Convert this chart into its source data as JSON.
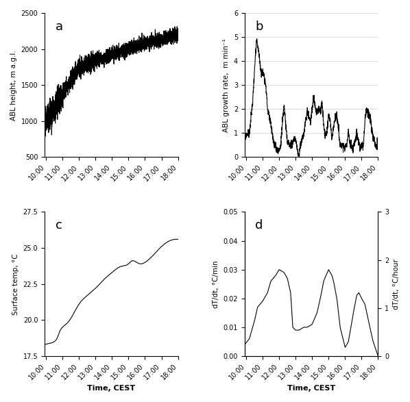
{
  "time_start": 9.917,
  "time_end": 18.0,
  "panel_labels": [
    "a",
    "b",
    "c",
    "d"
  ],
  "panel_a": {
    "ylabel": "ABL height, m a.g.l.",
    "ylim": [
      500,
      2500
    ],
    "yticks": [
      500,
      1000,
      1500,
      2000,
      2500
    ],
    "grid": false
  },
  "panel_b": {
    "ylabel": "ABL growth rate,  m min⁻¹",
    "ylim": [
      0,
      6
    ],
    "yticks": [
      0,
      1,
      2,
      3,
      4,
      5,
      6
    ],
    "grid": true
  },
  "panel_c": {
    "ylabel": "Surface temp, °C",
    "ylim": [
      17.5,
      27.5
    ],
    "yticks": [
      17.5,
      20.0,
      22.5,
      25.0,
      27.5
    ],
    "grid": false,
    "xlabel": "Time, CEST"
  },
  "panel_d": {
    "ylabel": "dT/dt, °C/min",
    "ylabel_right": "dT/dt, °C/hour",
    "ylim": [
      0,
      0.05
    ],
    "yticks": [
      0.0,
      0.01,
      0.02,
      0.03,
      0.04,
      0.05
    ],
    "ylim_right": [
      0,
      3
    ],
    "yticks_right": [
      0,
      1,
      2,
      3
    ],
    "grid": false,
    "xlabel": "Time, CEST"
  },
  "xticks": [
    10,
    11,
    12,
    13,
    14,
    15,
    16,
    17,
    18
  ],
  "xticklabels": [
    "10:00",
    "11:00",
    "12:00",
    "13:00",
    "14:00",
    "15:00",
    "16:00",
    "17:00",
    "18:00"
  ],
  "line_color": "black",
  "line_width": 0.8,
  "panel_d_t": [
    9.917,
    10.2,
    10.5,
    10.7,
    11.0,
    11.3,
    11.5,
    11.8,
    12.0,
    12.3,
    12.5,
    12.7,
    12.83,
    13.0,
    13.2,
    13.5,
    13.7,
    14.0,
    14.3,
    14.5,
    14.7,
    15.0,
    15.2,
    15.3,
    15.5,
    15.7,
    16.0,
    16.2,
    16.5,
    16.7,
    16.83,
    17.0,
    17.2,
    17.5,
    17.7,
    18.0
  ],
  "panel_d_y": [
    0.004,
    0.006,
    0.012,
    0.017,
    0.019,
    0.022,
    0.026,
    0.028,
    0.03,
    0.029,
    0.027,
    0.022,
    0.01,
    0.009,
    0.009,
    0.01,
    0.01,
    0.011,
    0.015,
    0.02,
    0.026,
    0.03,
    0.028,
    0.026,
    0.02,
    0.01,
    0.003,
    0.005,
    0.015,
    0.021,
    0.022,
    0.02,
    0.018,
    0.01,
    0.005,
    0.0
  ],
  "panel_c_t": [
    9.917,
    10.1,
    10.3,
    10.5,
    10.7,
    10.83,
    11.0,
    11.2,
    11.3,
    11.5,
    11.7,
    12.0,
    12.3,
    12.5,
    12.7,
    13.0,
    13.5,
    14.0,
    14.5,
    15.0,
    15.2,
    15.5,
    15.7,
    16.0,
    16.5,
    17.0,
    17.5,
    18.0
  ],
  "panel_c_y": [
    18.3,
    18.35,
    18.4,
    18.5,
    18.8,
    19.2,
    19.5,
    19.7,
    19.8,
    20.1,
    20.5,
    21.1,
    21.5,
    21.7,
    21.9,
    22.2,
    22.8,
    23.3,
    23.7,
    23.9,
    24.1,
    24.0,
    23.9,
    24.0,
    24.5,
    25.1,
    25.5,
    25.6
  ],
  "panel_b_t": [
    9.917,
    10.2,
    10.4,
    10.5,
    10.55,
    10.6,
    10.65,
    10.7,
    10.8,
    10.9,
    11.0,
    11.1,
    11.2,
    11.3,
    11.5,
    11.7,
    11.9,
    12.0,
    12.1,
    12.2,
    12.3,
    12.5,
    12.7,
    12.9,
    13.0,
    13.1,
    13.2,
    13.3,
    13.5,
    13.7,
    13.9,
    14.0,
    14.1,
    14.2,
    14.3,
    14.4,
    14.5,
    14.6,
    14.7,
    14.8,
    14.9,
    15.0,
    15.1,
    15.2,
    15.3,
    15.5,
    15.7,
    15.9,
    16.0,
    16.1,
    16.2,
    16.3,
    16.5,
    16.7,
    16.9,
    17.0,
    17.1,
    17.2,
    17.3,
    17.5,
    17.7,
    17.9,
    18.0
  ],
  "panel_b_y": [
    0.9,
    1.0,
    2.3,
    3.5,
    4.0,
    4.5,
    4.9,
    4.6,
    4.2,
    3.6,
    3.5,
    3.4,
    3.0,
    2.0,
    1.4,
    0.5,
    0.3,
    0.3,
    0.5,
    1.4,
    2.2,
    0.6,
    0.5,
    0.7,
    0.8,
    0.3,
    0.0,
    0.5,
    1.0,
    1.9,
    1.5,
    1.9,
    2.5,
    2.0,
    1.8,
    2.0,
    1.9,
    2.3,
    1.4,
    0.8,
    1.0,
    1.8,
    1.5,
    0.7,
    1.3,
    1.8,
    0.5,
    0.5,
    0.4,
    0.5,
    1.1,
    0.5,
    0.3,
    1.0,
    0.4,
    0.5,
    0.4,
    1.5,
    2.0,
    1.7,
    0.8,
    0.4,
    0.8
  ]
}
